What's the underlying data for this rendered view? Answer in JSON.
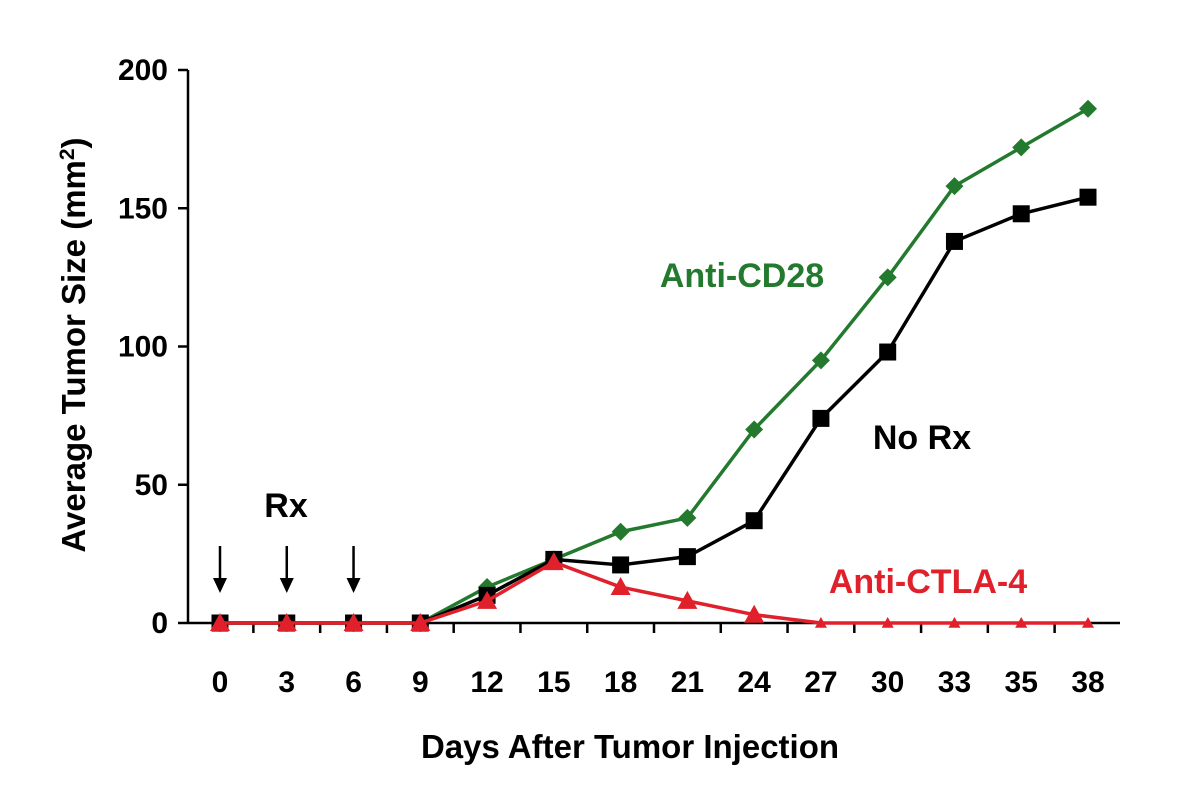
{
  "chart_data": {
    "type": "line",
    "title": "",
    "xlabel": "Days After Tumor Injection",
    "ylabel_main": "Average Tumor Size (mm",
    "ylabel_sup": "2",
    "ylabel_close": ")",
    "ylim": [
      0,
      200
    ],
    "yticks": [
      0,
      50,
      100,
      150,
      200
    ],
    "ytick_labels": [
      "0",
      "50",
      "100",
      "150",
      "200"
    ],
    "x": [
      0,
      3,
      6,
      9,
      12,
      15,
      18,
      21,
      24,
      27,
      30,
      33,
      35,
      38
    ],
    "xtick_labels": [
      "0",
      "3",
      "6",
      "9",
      "12",
      "15",
      "18",
      "21",
      "24",
      "27",
      "30",
      "33",
      "35",
      "38"
    ],
    "grid": false,
    "legend": "none (inline series labels)",
    "series": [
      {
        "name": "Anti-CD28",
        "color": "#237A2E",
        "marker": "diamond",
        "values": [
          0,
          0,
          0,
          0,
          13,
          23,
          33,
          38,
          70,
          95,
          125,
          158,
          172,
          186
        ]
      },
      {
        "name": "No Rx",
        "color": "#000000",
        "marker": "square",
        "values": [
          0,
          0,
          0,
          0,
          10,
          23,
          21,
          24,
          37,
          74,
          98,
          138,
          148,
          154
        ]
      },
      {
        "name": "Anti-CTLA-4",
        "color": "#E0202A",
        "marker": "triangle",
        "values": [
          0,
          0,
          0,
          0,
          8,
          22,
          13,
          8,
          3,
          0,
          0,
          0,
          0,
          0
        ]
      }
    ],
    "annotations": {
      "rx_label": "Rx",
      "rx_days": [
        0,
        3,
        6
      ]
    }
  }
}
